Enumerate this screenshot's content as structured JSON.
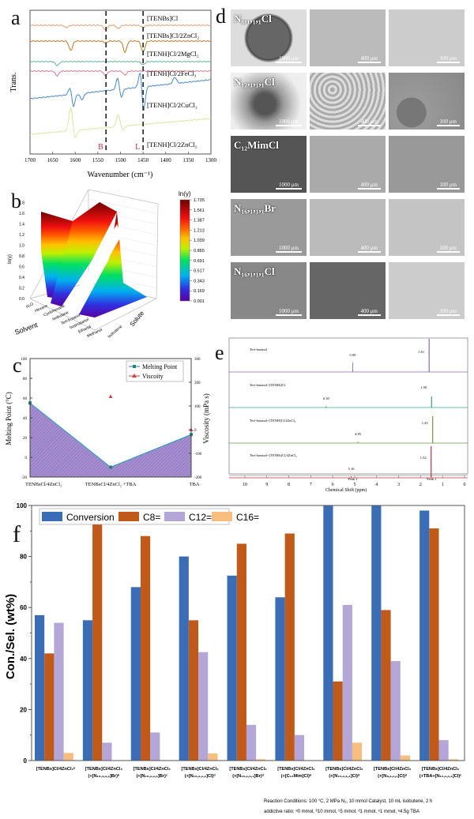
{
  "panels": {
    "a": "a",
    "b": "b",
    "c": "c",
    "d": "d",
    "e": "e",
    "f": "f"
  },
  "chart_data": [
    {
      "id": "a",
      "type": "line",
      "title": "",
      "xlabel": "Wavenumber (cm⁻¹)",
      "ylabel": "Trans.",
      "xlim": [
        1700,
        1300
      ],
      "xticks": [
        "1700",
        "1650",
        "1600",
        "1550",
        "1500",
        "1450",
        "1400",
        "1350",
        "1300"
      ],
      "markers": [
        {
          "label": "B",
          "x": 1532
        },
        {
          "label": "L",
          "x": 1450
        }
      ],
      "series": [
        {
          "name": "[TENBs]Cl",
          "color": "#e0a070"
        },
        {
          "name": "[TENBs]Cl/2ZnCl₂",
          "color": "#c07828"
        },
        {
          "name": "[TENH]Cl/2MgCl₂",
          "color": "#5fb89a"
        },
        {
          "name": "[TENH]Cl/2FeCl₃",
          "color": "#e07890"
        },
        {
          "name": "[TENH]Cl/2CuCl₂",
          "color": "#4a88c8"
        },
        {
          "name": "[TENH]Cl/2ZnCl₂",
          "color": "#d8e8a0"
        }
      ]
    },
    {
      "id": "b",
      "type": "heatmap",
      "title": "",
      "colorbar_label": "ln(γ)",
      "colorbar_ticks": [
        "1.735",
        "1.561",
        "1.387",
        "1.213",
        "1.039",
        "0.865",
        "0.691",
        "0.517",
        "0.343",
        "0.169",
        "0.001"
      ],
      "zlabel": "ln(γ)",
      "zticks": [
        "0.0",
        "0.2",
        "0.4",
        "0.6",
        "0.8",
        "1.0",
        "1.2",
        "1.4",
        "1.6",
        "1.8"
      ],
      "xlabel": "Solvent",
      "xticks": [
        "H₂O",
        "Hexane",
        "Cyclohexane",
        "Isobutane",
        "Tert-butanol",
        "Isopropanol",
        "Ethanol",
        "Methanol"
      ],
      "ylabel": "Solute",
      "yticks": [
        "Isobutene",
        "tr"
      ]
    },
    {
      "id": "c",
      "type": "line",
      "categories": [
        "TENBsCl/4ZnCl₂",
        "TENBsCl/4ZnCl₂ +TBA",
        "TBA"
      ],
      "series": [
        {
          "name": "Melting Point",
          "axis": "left",
          "values": [
            55,
            -10,
            23
          ],
          "color": "#2a7f7f"
        },
        {
          "name": "Viscoity",
          "axis": "right",
          "values": [
            null,
            140,
            0
          ],
          "color": "#d04040"
        }
      ],
      "ylabel": "Melting Point (°C)",
      "ylim": [
        -20,
        100
      ],
      "yticks": [
        "-20",
        "0",
        "20",
        "40",
        "60",
        "80",
        "100"
      ],
      "y2label": "Viscosity (mPa s)",
      "y2lim": [
        -200,
        300
      ],
      "y2ticks": [
        "-200",
        "-100",
        "0",
        "100",
        "200",
        "300"
      ],
      "legend": "top-right"
    },
    {
      "id": "e",
      "type": "line",
      "xlabel": "Chemical Shift (ppm)",
      "xlim": [
        10.5,
        0
      ],
      "xticks": [
        "10",
        "9",
        "8",
        "7",
        "6",
        "5",
        "4",
        "3",
        "2",
        "1",
        "0"
      ],
      "peak_labels": [
        "Peak 2",
        "Peak 1"
      ],
      "spectra": [
        {
          "name": "Tert-butanol",
          "color": "#8a6ab0",
          "peaks": [
            {
              "ppm": 5.09,
              "label": "5.09"
            },
            {
              "ppm": 1.61,
              "label": "1.61"
            }
          ]
        },
        {
          "name": "Tert-butanol+[TENBs]Cl",
          "color": "#3aa078",
          "peaks": [
            {
              "ppm": 6.3,
              "label": "6.30"
            },
            {
              "ppm": 1.5,
              "label": "1.50"
            }
          ]
        },
        {
          "name": "Tert-butanol+[TENH]Cl/2ZnCl₂",
          "color": "#6a9a40",
          "peaks": [
            {
              "ppm": 4.85,
              "label": "4.85"
            },
            {
              "ppm": 1.45,
              "label": "1.45"
            }
          ]
        },
        {
          "name": "Tert-butanol+[TENBs]Cl/4ZnCl₂",
          "color": "#c03040",
          "peaks": [
            {
              "ppm": 5.16,
              "label": "5.16"
            },
            {
              "ppm": 1.52,
              "label": "1.52"
            }
          ]
        }
      ]
    },
    {
      "id": "f",
      "type": "bar",
      "ylabel": "Con./Sel. (wt%)",
      "ylim": [
        0,
        100
      ],
      "yticks": [
        "0",
        "20",
        "40",
        "60",
        "80",
        "100"
      ],
      "legend": "top-left",
      "categories": [
        [
          "[TENBs]Cl/4ZnCl₂ᵃ",
          ""
        ],
        [
          "[TENBs]Cl/4ZnCl₂",
          "(+[N₁₆,₁,₁,₁]Br)ᵇ"
        ],
        [
          "[TENBs]Cl/4ZnCl₂",
          "(+[N₁₆,₁,₁,₁]Br)ᶜ"
        ],
        [
          "[TENBs]Cl/4ZnCl₂",
          "(+[N₁₆,₁,₁,₁]Cl)ᵈ"
        ],
        [
          "[TENBs]Cl/4ZnCl₂",
          "(+[N₁₆,₁,₁,₁]Br)ᵈ"
        ],
        [
          "[TENBs]Cl/4ZnCl₂",
          "(+[C₁₂Mim]Cl)ᵈ"
        ],
        [
          "[TENBs]Cl/4ZnCl₂",
          "(+[N₁₂,₁,₁,₁]Cl)ᵈ"
        ],
        [
          "[TENBs]Cl/4ZnCl₂",
          "(+[N₈,₁,₁,₁]Cl)ᵈ"
        ],
        [
          "[TENBs]Cl/4ZnCl₂",
          "(+TBA+[N₁₂,₁,₁,₁]Cl)ᵉ"
        ]
      ],
      "series": [
        {
          "name": "Conversion",
          "color": "#3a6db5",
          "values": [
            57,
            55,
            68,
            80,
            72.5,
            64,
            100,
            100,
            98
          ]
        },
        {
          "name": "C8=",
          "color": "#c05a1a",
          "values": [
            42,
            93,
            88,
            55,
            85,
            89,
            31,
            59,
            91
          ]
        },
        {
          "name": "C12=",
          "color": "#b4a6d6",
          "values": [
            54,
            7,
            11,
            42.5,
            14,
            10,
            61,
            39,
            8
          ]
        },
        {
          "name": "C16=",
          "color": "#f8be80",
          "values": [
            3,
            0,
            0,
            2.8,
            0.5,
            0,
            7,
            2,
            0.5
          ]
        }
      ],
      "notes": [
        "Reaction Conditions: 100 °C, 2 MPa N₂, 10 mmol Catalyst, 10 mL isobutene, 2 h",
        "addictive ratio: ᵃ0 mmol, ᵇ10 mmol, ᶜ5 mmol, ᵈ1 mmol, ᵉ1 mmol, ᵉ4.5g TBA"
      ]
    }
  ],
  "micrographs": {
    "rows": [
      {
        "label": "N₈,₁,₁,₁Cl",
        "scales": [
          "1000 μm",
          "400 μm",
          "100 μm"
        ]
      },
      {
        "label": "N₁₂,₁,₁,₁Cl",
        "scales": [
          "1000 μm",
          "400 μm",
          "100 μm"
        ]
      },
      {
        "label": "C₁₂MimCl",
        "scales": [
          "1000 μm",
          "400 μm",
          "100 μm"
        ]
      },
      {
        "label": "N₁₆,₁,₁,₁Br",
        "scales": [
          "1000 μm",
          "400 μm",
          "100 μm"
        ]
      },
      {
        "label": "N₁₆,₁,₁,₁Cl",
        "scales": [
          "1000 μm",
          "400 μm",
          "100 μm"
        ]
      }
    ]
  }
}
